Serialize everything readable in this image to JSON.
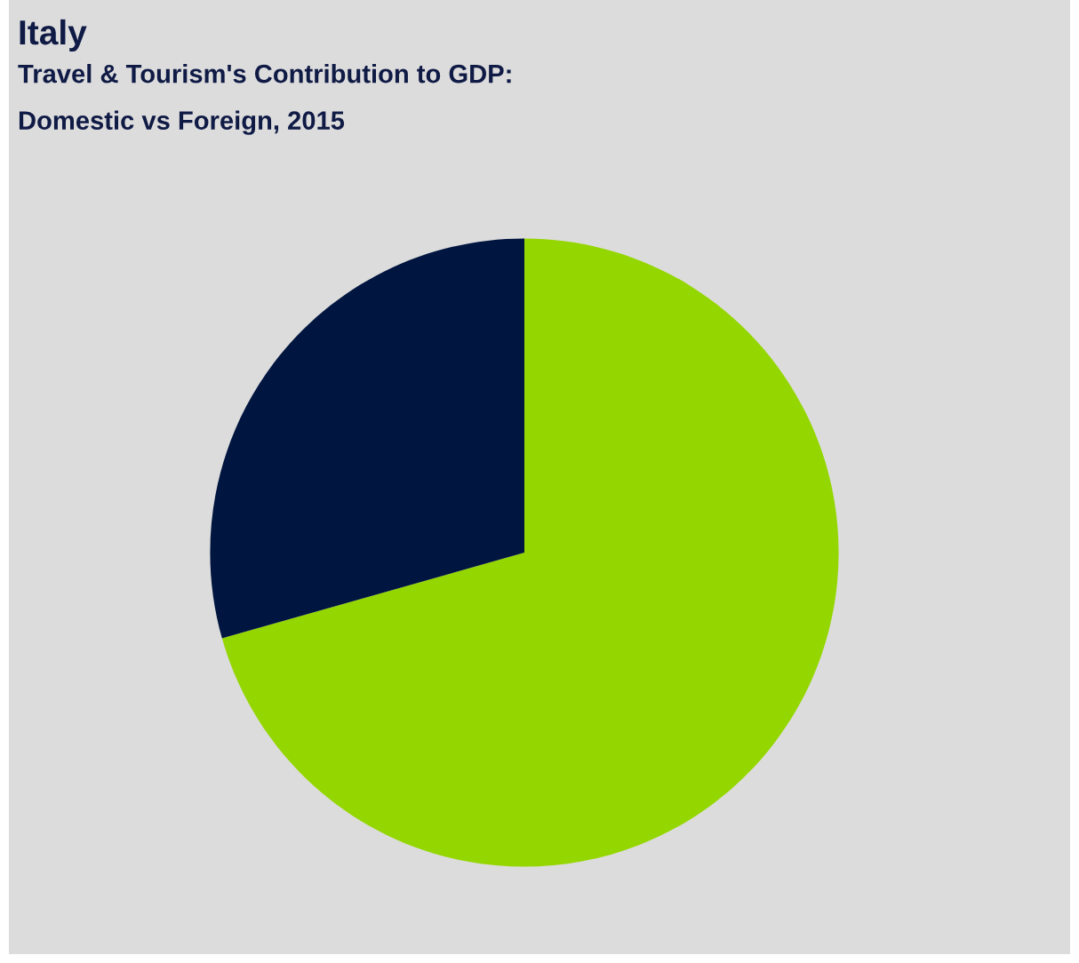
{
  "chart_data": {
    "type": "pie",
    "title": "Italy",
    "subtitle": "Travel & Tourism's Contribution to GDP:\nDomestic vs Foreign, 2015",
    "categories": [
      null,
      null
    ],
    "values": [
      70.6,
      29.4
    ],
    "colors": [
      "#94d600",
      "#00153f"
    ]
  }
}
